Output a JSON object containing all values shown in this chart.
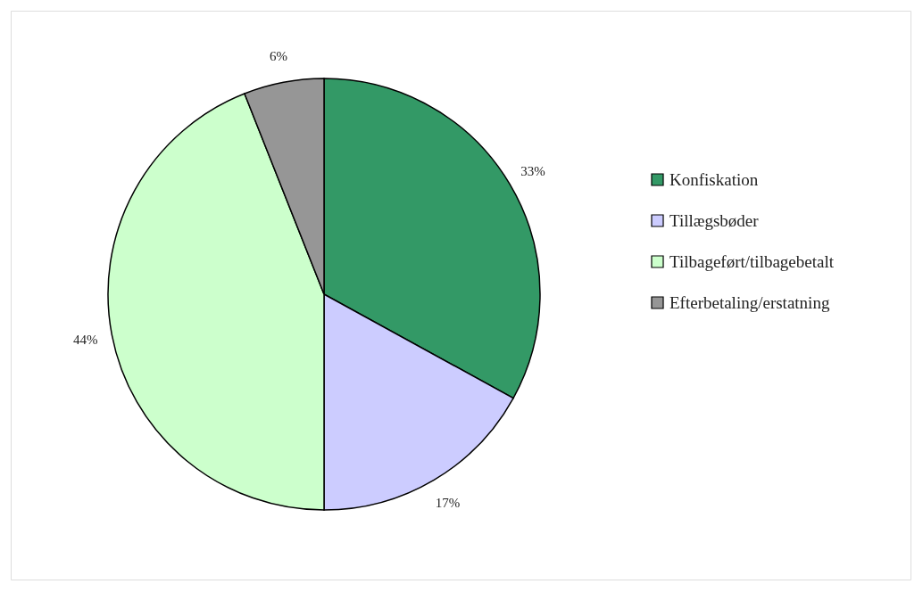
{
  "chart_data": {
    "type": "pie",
    "categories": [
      "Konfiskation",
      "Tillægsbøder",
      "Tilbageført/tilbagebetalt",
      "Efterbetaling/erstatning"
    ],
    "values": [
      33,
      17,
      44,
      6
    ],
    "colors": [
      "#339966",
      "#ccccff",
      "#ccffcc",
      "#969696"
    ],
    "value_labels": [
      "33%",
      "17%",
      "44%",
      "6%"
    ],
    "legend": "right"
  }
}
